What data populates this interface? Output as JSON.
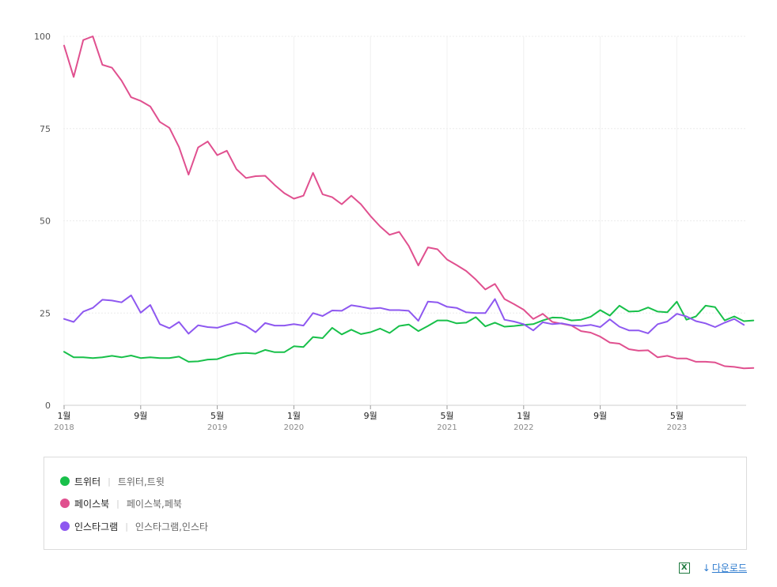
{
  "chart_data": {
    "type": "line",
    "y_ticks": [
      "100",
      "75",
      "50",
      "25",
      "0"
    ],
    "ylim": [
      0,
      100
    ],
    "x_ticks": [
      {
        "month": "1월",
        "year": "2018",
        "index": 0
      },
      {
        "month": "9월",
        "year": "",
        "index": 8
      },
      {
        "month": "5월",
        "year": "2019",
        "index": 16
      },
      {
        "month": "1월",
        "year": "2020",
        "index": 24
      },
      {
        "month": "9월",
        "year": "",
        "index": 32
      },
      {
        "month": "5월",
        "year": "2021",
        "index": 40
      },
      {
        "month": "1월",
        "year": "2022",
        "index": 48
      },
      {
        "month": "9월",
        "year": "",
        "index": 56
      },
      {
        "month": "5월",
        "year": "2023",
        "index": 64
      }
    ],
    "x_start": "2018-01",
    "x_end": "2023-12",
    "grid": true,
    "series": [
      {
        "name": "트위터",
        "color": "#18c04a",
        "values": [
          14.5,
          13,
          13,
          12.8,
          13,
          13.4,
          13,
          13.5,
          12.8,
          13,
          12.8,
          12.8,
          13.2,
          11.8,
          11.9,
          12.4,
          12.5,
          13.4,
          14,
          14.2,
          14,
          15,
          14.4,
          14.4,
          16,
          15.8,
          18.5,
          18.2,
          21,
          19.2,
          20.5,
          19.3,
          19.8,
          20.8,
          19.6,
          21.5,
          21.9,
          20.1,
          21.5,
          23,
          23,
          22.2,
          22.4,
          23.9,
          21.4,
          22.4,
          21.3,
          21.5,
          21.8,
          22,
          23,
          23.8,
          23.7,
          23,
          23.2,
          24,
          25.8,
          24.3,
          27,
          25.4,
          25.5,
          26.5,
          25.4,
          25.2,
          28.1,
          23.2,
          24.1,
          27,
          26.6,
          23,
          24.1,
          22.8,
          23
        ]
      },
      {
        "name": "페이스북",
        "color": "#e0508f",
        "values": [
          97.5,
          89,
          99,
          100,
          92.3,
          91.5,
          88,
          83.5,
          82.5,
          81,
          76.8,
          75.2,
          70,
          62.5,
          69.9,
          71.5,
          67.8,
          69,
          64,
          61.6,
          62.1,
          62.2,
          59.7,
          57.5,
          56,
          56.8,
          63,
          57.2,
          56.4,
          54.5,
          56.8,
          54.5,
          51.3,
          48.5,
          46.2,
          47,
          43.2,
          37.9,
          42.8,
          42.3,
          39.5,
          38,
          36.4,
          34.1,
          31.4,
          32.9,
          28.8,
          27.4,
          25.9,
          23.4,
          24.8,
          22.6,
          22.1,
          21.6,
          20.1,
          19.7,
          18.6,
          17,
          16.7,
          15.2,
          14.8,
          14.9,
          13,
          13.4,
          12.7,
          12.7,
          11.8,
          11.8,
          11.6,
          10.6,
          10.4,
          10,
          10.1
        ]
      },
      {
        "name": "인스타그램",
        "color": "#8e58f0",
        "values": [
          23.4,
          22.6,
          25.4,
          26.4,
          28.6,
          28.4,
          27.9,
          29.8,
          25.1,
          27.2,
          22,
          20.9,
          22.6,
          19.4,
          21.7,
          21.2,
          21,
          21.8,
          22.5,
          21.5,
          19.8,
          22.3,
          21.6,
          21.6,
          22,
          21.6,
          25,
          24.2,
          25.7,
          25.6,
          27.1,
          26.7,
          26.2,
          26.4,
          25.8,
          25.8,
          25.6,
          22.9,
          28.1,
          27.9,
          26.7,
          26.4,
          25.2,
          25,
          25,
          28.8,
          23.2,
          22.7,
          22,
          20.3,
          22.5,
          22,
          22.2,
          21.7,
          21.5,
          21.8,
          21.2,
          23.3,
          21.3,
          20.3,
          20.3,
          19.5,
          22,
          22.7,
          24.8,
          24.1,
          22.8,
          22.2,
          21.2,
          22.4,
          23.4,
          21.8
        ]
      }
    ]
  },
  "legend": {
    "items": [
      {
        "name": "트위터",
        "keywords": "트위터,트윗",
        "color": "#18c04a"
      },
      {
        "name": "페이스북",
        "keywords": "페이스북,페북",
        "color": "#e0508f"
      },
      {
        "name": "인스타그램",
        "keywords": "인스타그램,인스타",
        "color": "#8e58f0"
      }
    ],
    "separator": "|"
  },
  "download": {
    "label": "다운로드",
    "excel_icon": "excel-icon",
    "excel_glyph": "X",
    "arrow_glyph": "↓"
  }
}
